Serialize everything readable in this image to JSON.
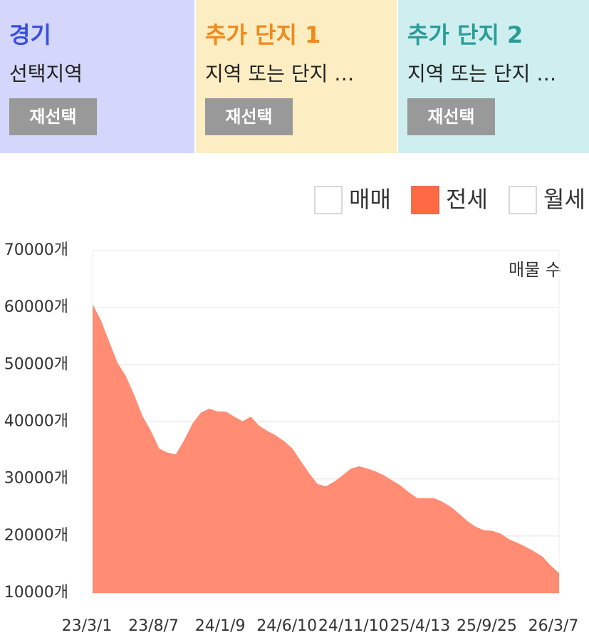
{
  "panels": [
    {
      "title": "경기",
      "subtitle": "선택지역",
      "button": "재선택",
      "title_color": "#3a4fe0",
      "background": "#d4d7fb"
    },
    {
      "title": "추가 단지 1",
      "subtitle": "지역 또는 단지 …",
      "button": "재선택",
      "title_color": "#f08a1c",
      "background": "#fdedc3"
    },
    {
      "title": "추가 단지 2",
      "subtitle": "지역 또는 단지 …",
      "button": "재선택",
      "title_color": "#2a9d97",
      "background": "#cfeef0"
    }
  ],
  "chart_data": {
    "type": "area",
    "options": [
      {
        "label": "매매",
        "checked": false
      },
      {
        "label": "전세",
        "checked": true,
        "color": "#ff6a45"
      },
      {
        "label": "월세",
        "checked": false
      }
    ],
    "annotation": "매물 수",
    "color": "#ff8c73",
    "categories": [
      "23/3/1",
      null,
      null,
      null,
      null,
      null,
      null,
      null,
      "23/8/7",
      null,
      null,
      null,
      null,
      null,
      null,
      null,
      "24/1/9",
      null,
      null,
      null,
      null,
      null,
      null,
      null,
      "24/6/10",
      null,
      null,
      null,
      null,
      null,
      null,
      null,
      "24/11/10",
      null,
      null,
      null,
      null,
      null,
      null,
      null,
      "25/4/13",
      null,
      null,
      null,
      null,
      null,
      null,
      null,
      "25/9/25",
      null,
      null,
      null,
      null,
      null,
      null,
      null,
      "26/3/7"
    ],
    "values": [
      60600,
      57800,
      54000,
      50300,
      48000,
      44700,
      41000,
      38400,
      35300,
      34600,
      34300,
      36800,
      39700,
      41600,
      42300,
      41800,
      41800,
      40900,
      40100,
      40900,
      39300,
      38400,
      37600,
      36600,
      35300,
      33100,
      31000,
      29100,
      28700,
      29500,
      30600,
      31800,
      32200,
      31800,
      31300,
      30600,
      29700,
      28800,
      27600,
      26600,
      26600,
      26600,
      26000,
      25100,
      23900,
      22600,
      21600,
      21000,
      20900,
      20400,
      19400,
      18800,
      18100,
      17300,
      16400,
      14800,
      13500
    ],
    "ylim": [
      10000,
      70000
    ],
    "yticks": [
      {
        "value": 10000,
        "label": "10000개"
      },
      {
        "value": 20000,
        "label": "20000개"
      },
      {
        "value": 30000,
        "label": "30000개"
      },
      {
        "value": 40000,
        "label": "40000개"
      },
      {
        "value": 50000,
        "label": "50000개"
      },
      {
        "value": 60000,
        "label": "60000개"
      },
      {
        "value": 70000,
        "label": "70000개"
      }
    ],
    "grid": true
  }
}
